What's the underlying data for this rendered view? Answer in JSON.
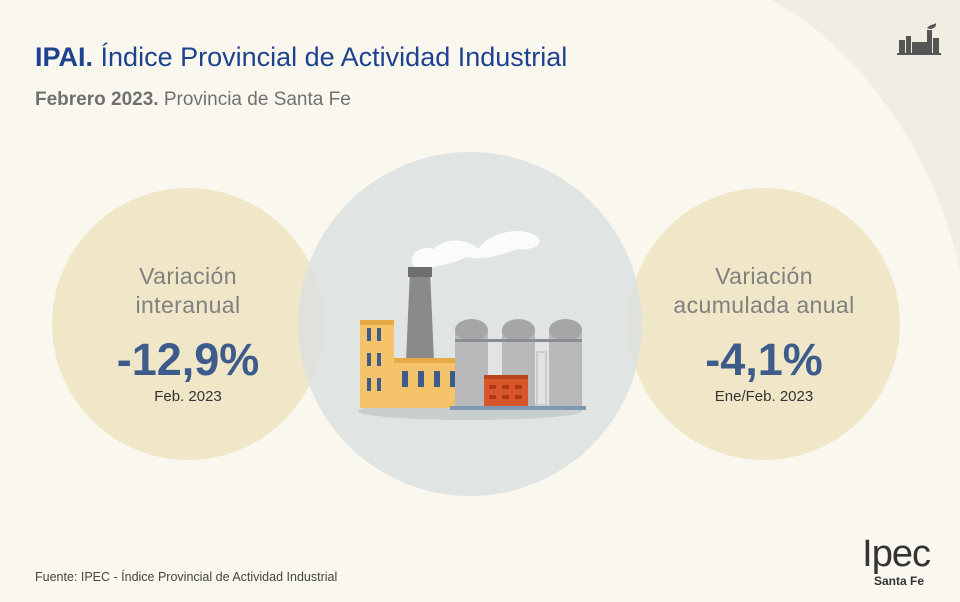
{
  "header": {
    "title_bold": "IPAI.",
    "title_rest": "Índice Provincial de Actividad Industrial",
    "subtitle_bold": "Febrero 2023.",
    "subtitle_rest": "Provincia de Santa Fe"
  },
  "stats": [
    {
      "label_line1": "Variación",
      "label_line2": "interanual",
      "value": "-12,9%",
      "period": "Feb. 2023"
    },
    {
      "label_line1": "Variación",
      "label_line2": "acumulada anual",
      "value": "-4,1%",
      "period": "Ene/Feb. 2023"
    }
  ],
  "illustration": {
    "icon": "factory-icon"
  },
  "header_icon": "factory-icon",
  "footer": {
    "source": "Fuente: IPEC - Índice Provincial de Actividad Industrial",
    "logo_text": "Ipec",
    "logo_subtext": "Santa Fe"
  },
  "colors": {
    "background": "#faf8ee",
    "title_blue": "#1e4290",
    "value_blue": "#3d5c8c",
    "side_circle": "#f0e6c8",
    "center_circle": "#dde2e2"
  }
}
